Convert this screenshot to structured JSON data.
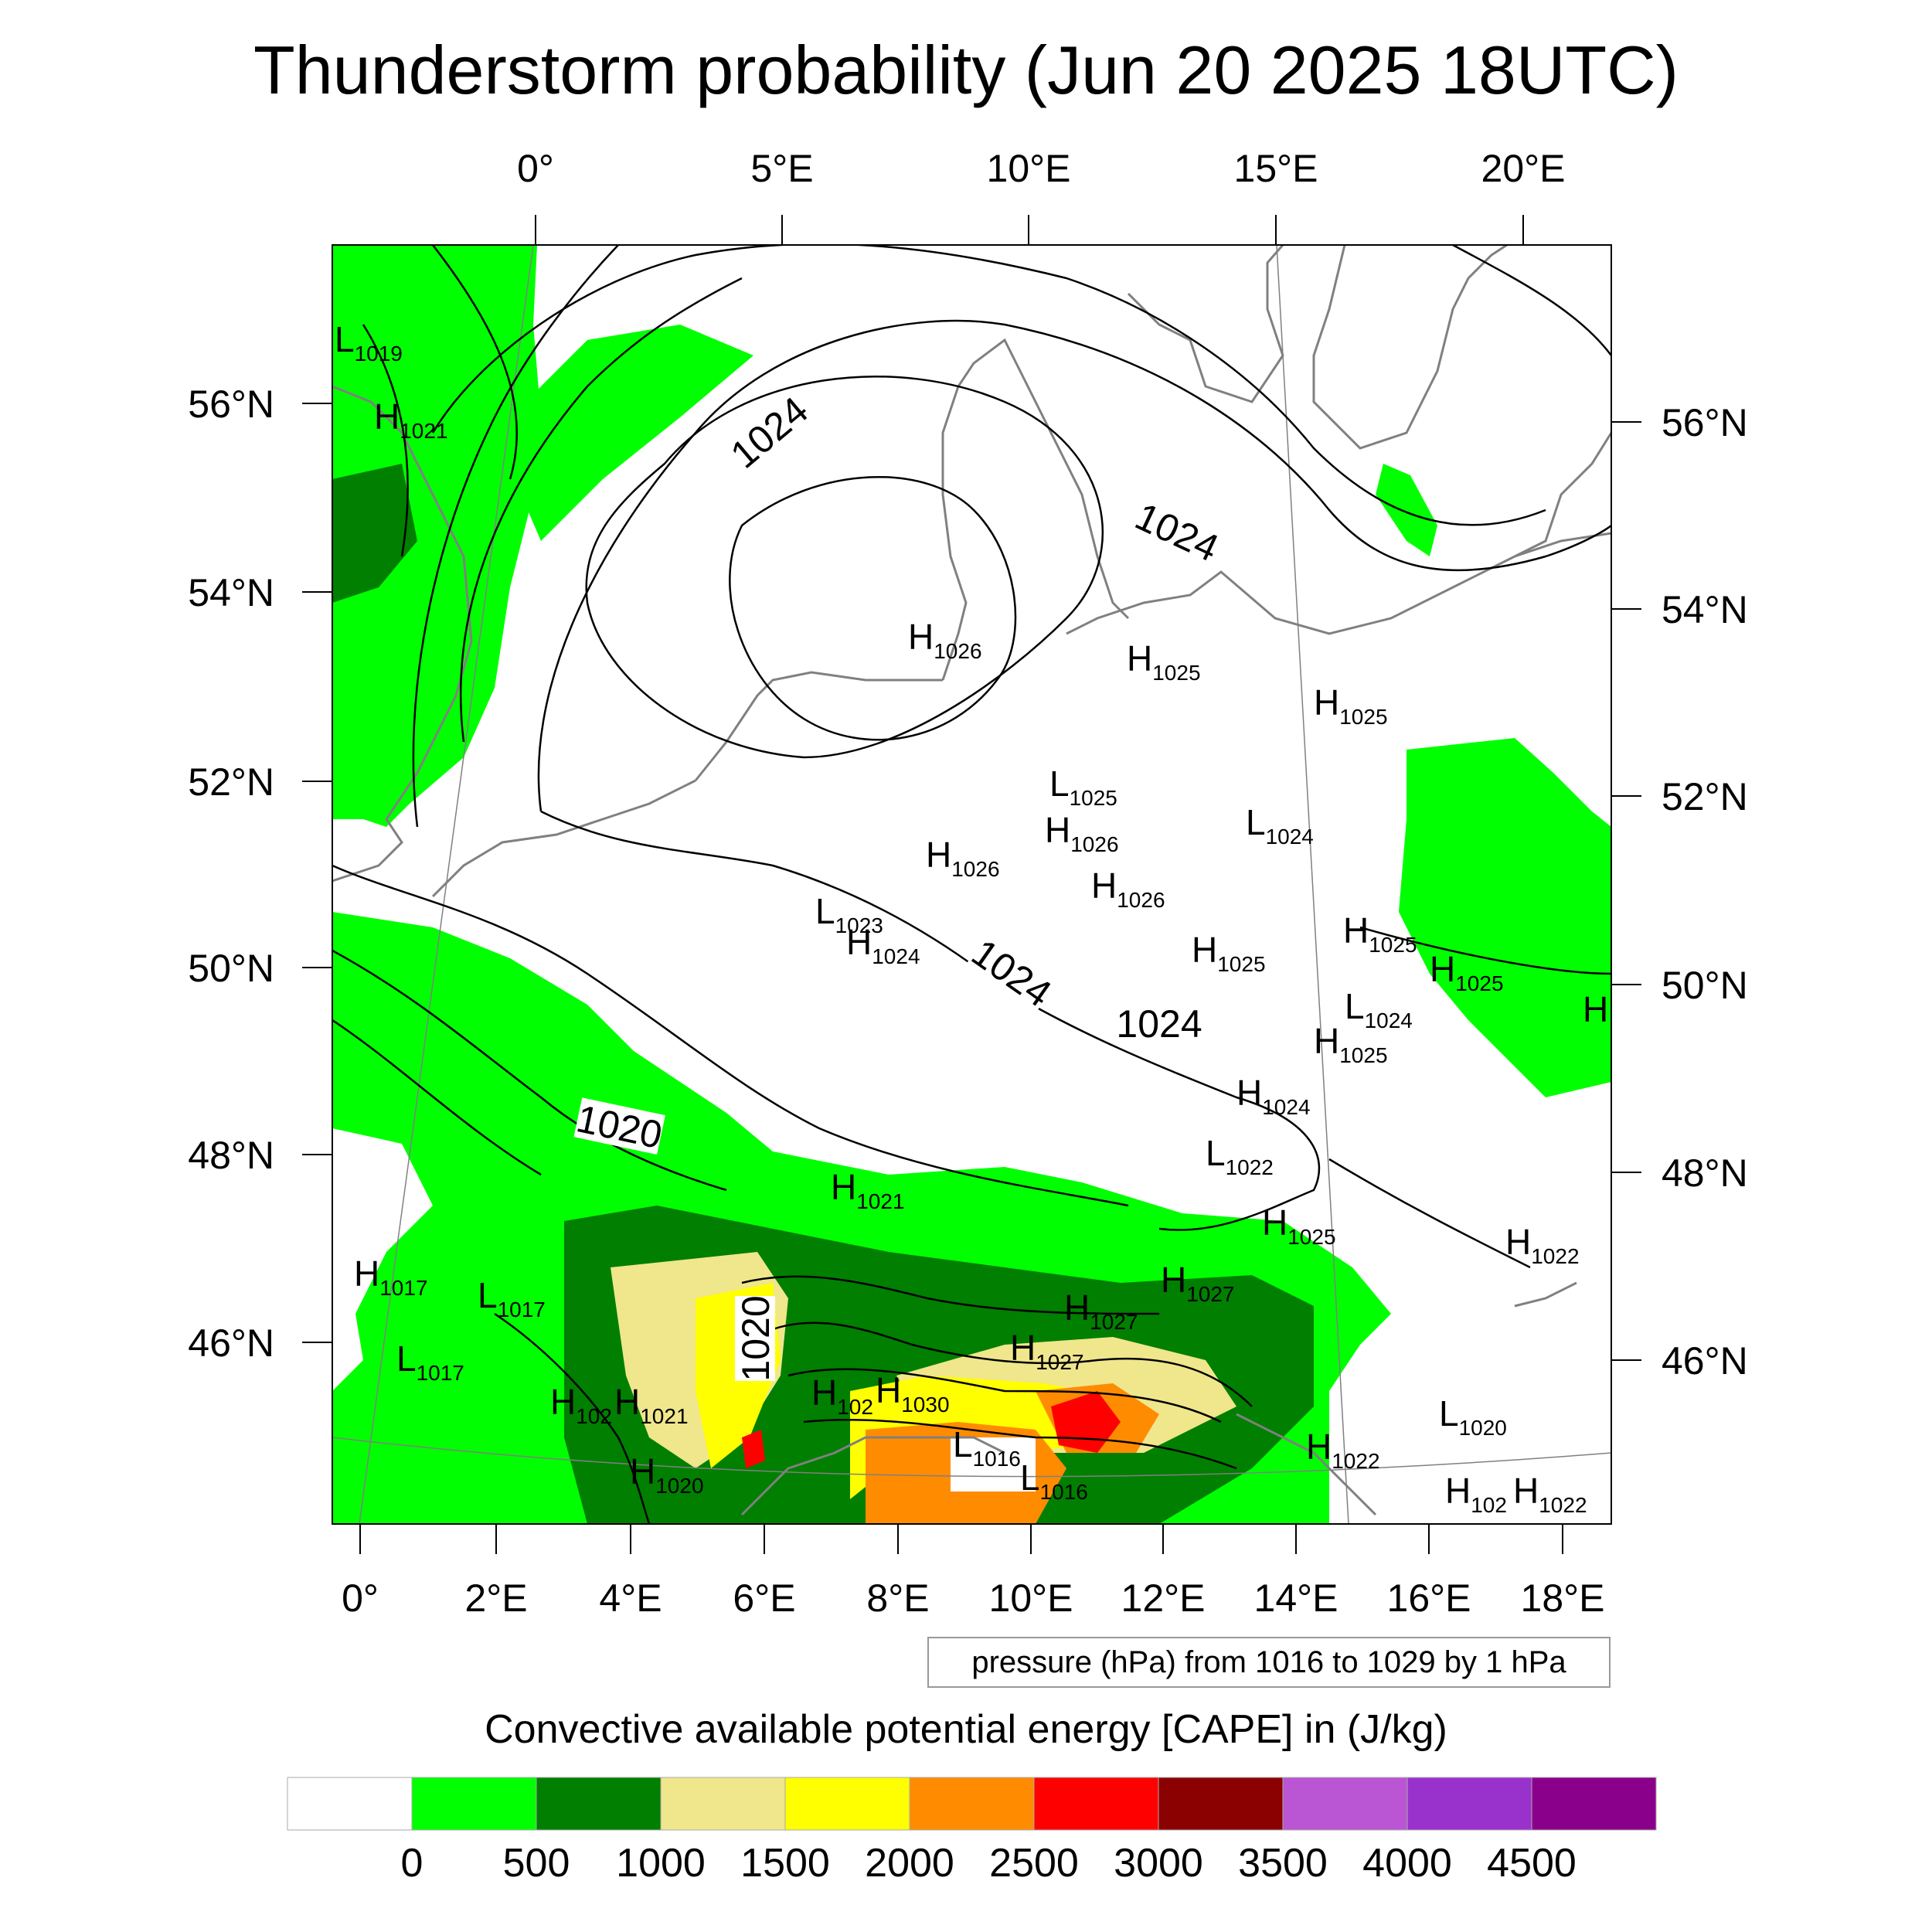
{
  "title": "Thunderstorm probability (Jun 20 2025 18UTC)",
  "top_lon_labels": [
    "0°",
    "5°E",
    "10°E",
    "15°E",
    "20°E"
  ],
  "bottom_lon_labels": [
    "0°",
    "2°E",
    "4°E",
    "6°E",
    "8°E",
    "10°E",
    "12°E",
    "14°E",
    "16°E",
    "18°E"
  ],
  "left_lat_labels": [
    "56°N",
    "54°N",
    "52°N",
    "50°N",
    "48°N",
    "46°N"
  ],
  "right_lat_labels": [
    "56°N",
    "54°N",
    "52°N",
    "50°N",
    "48°N",
    "46°N"
  ],
  "contour_labels": [
    "1024",
    "1024",
    "1024",
    "1024",
    "1020",
    "1020"
  ],
  "pressure_centers": [
    {
      "letter": "L",
      "value": "1019"
    },
    {
      "letter": "H",
      "value": "1021"
    },
    {
      "letter": "H",
      "value": "1026"
    },
    {
      "letter": "H",
      "value": "1025"
    },
    {
      "letter": "H",
      "value": "1025"
    },
    {
      "letter": "L",
      "value": "1025"
    },
    {
      "letter": "H",
      "value": "1026"
    },
    {
      "letter": "L",
      "value": "1024"
    },
    {
      "letter": "H",
      "value": "1026"
    },
    {
      "letter": "H",
      "value": "1026"
    },
    {
      "letter": "L",
      "value": "1023"
    },
    {
      "letter": "H",
      "value": "1024"
    },
    {
      "letter": "H",
      "value": "1025"
    },
    {
      "letter": "H",
      "value": "1025"
    },
    {
      "letter": "H",
      "value": "1025"
    },
    {
      "letter": "L",
      "value": "1024"
    },
    {
      "letter": "H",
      "value": "1025"
    },
    {
      "letter": "H",
      "value": ""
    },
    {
      "letter": "H",
      "value": "1024"
    },
    {
      "letter": "L",
      "value": "1022"
    },
    {
      "letter": "H",
      "value": "1021"
    },
    {
      "letter": "H",
      "value": "1025"
    },
    {
      "letter": "H",
      "value": "1022"
    },
    {
      "letter": "H",
      "value": "1017"
    },
    {
      "letter": "L",
      "value": "1017"
    },
    {
      "letter": "H",
      "value": "1027"
    },
    {
      "letter": "H",
      "value": "1027"
    },
    {
      "letter": "L",
      "value": "1017"
    },
    {
      "letter": "H",
      "value": "1027"
    },
    {
      "letter": "H",
      "value": "102"
    },
    {
      "letter": "H",
      "value": "1021"
    },
    {
      "letter": "H",
      "value": "102"
    },
    {
      "letter": "H",
      "value": "1030"
    },
    {
      "letter": "L",
      "value": "1016"
    },
    {
      "letter": "L",
      "value": "1016"
    },
    {
      "letter": "H",
      "value": "1020"
    },
    {
      "letter": "L",
      "value": "1020"
    },
    {
      "letter": "H",
      "value": "1022"
    },
    {
      "letter": "H",
      "value": "102"
    },
    {
      "letter": "H",
      "value": "1022"
    }
  ],
  "pressure_note": "pressure (hPa) from 1016 to 1029 by 1 hPa",
  "legend": {
    "title": "Convective available potential energy [CAPE] in (J/kg)",
    "tick_labels": [
      "0",
      "500",
      "1000",
      "1500",
      "2000",
      "2500",
      "3000",
      "3500",
      "4000",
      "4500"
    ],
    "colors": [
      "#ffffff",
      "#00ff00",
      "#007f00",
      "#f0e68c",
      "#ffff00",
      "#ff8c00",
      "#ff0000",
      "#8b0000",
      "#ba55d3",
      "#9932cc",
      "#8b008b"
    ]
  }
}
